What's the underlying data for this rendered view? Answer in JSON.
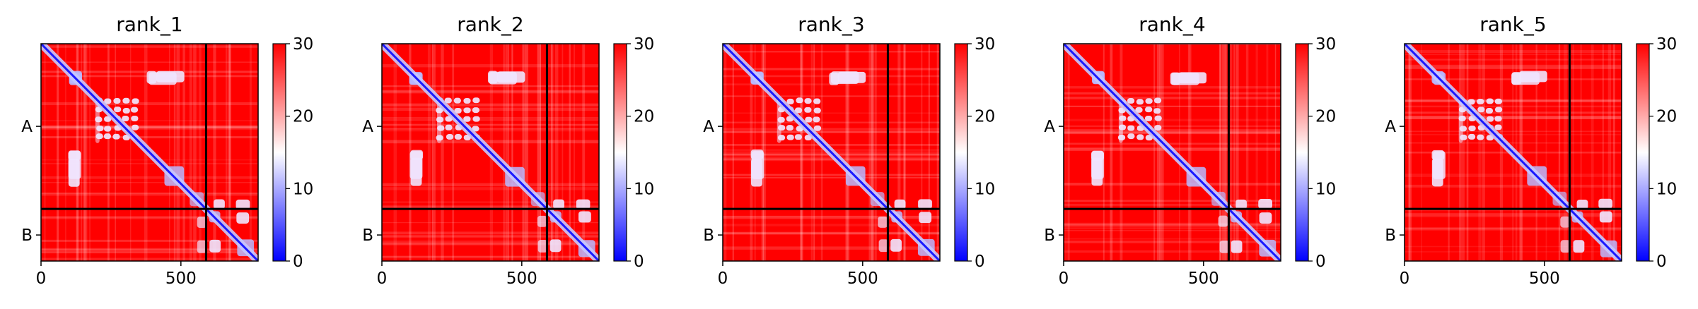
{
  "colorbar": {
    "colors": [
      "#0000ff",
      "#ffffff",
      "#ff0000"
    ],
    "min": 0,
    "max": 30,
    "ticks": [
      0,
      10,
      20,
      30
    ]
  },
  "chart_data": [
    {
      "type": "heatmap",
      "title": "rank_1",
      "x_ticks": [
        0,
        500
      ],
      "chain_labels": [
        "A",
        "B"
      ],
      "xlim": [
        0,
        776
      ],
      "ylim": [
        0,
        776
      ],
      "chain_boundary": 590,
      "value_range": [
        0,
        30
      ],
      "grid": false,
      "variant": 0
    },
    {
      "type": "heatmap",
      "title": "rank_2",
      "x_ticks": [
        0,
        500
      ],
      "chain_labels": [
        "A",
        "B"
      ],
      "xlim": [
        0,
        776
      ],
      "ylim": [
        0,
        776
      ],
      "chain_boundary": 590,
      "value_range": [
        0,
        30
      ],
      "grid": false,
      "variant": 1
    },
    {
      "type": "heatmap",
      "title": "rank_3",
      "x_ticks": [
        0,
        500
      ],
      "chain_labels": [
        "A",
        "B"
      ],
      "xlim": [
        0,
        776
      ],
      "ylim": [
        0,
        776
      ],
      "chain_boundary": 590,
      "value_range": [
        0,
        30
      ],
      "grid": false,
      "variant": 2
    },
    {
      "type": "heatmap",
      "title": "rank_4",
      "x_ticks": [
        0,
        500
      ],
      "chain_labels": [
        "A",
        "B"
      ],
      "xlim": [
        0,
        776
      ],
      "ylim": [
        0,
        776
      ],
      "chain_boundary": 590,
      "value_range": [
        0,
        30
      ],
      "grid": false,
      "variant": 3
    },
    {
      "type": "heatmap",
      "title": "rank_5",
      "x_ticks": [
        0,
        500
      ],
      "chain_labels": [
        "A",
        "B"
      ],
      "xlim": [
        0,
        776
      ],
      "ylim": [
        0,
        776
      ],
      "chain_boundary": 590,
      "value_range": [
        0,
        30
      ],
      "grid": false,
      "variant": 4
    }
  ]
}
